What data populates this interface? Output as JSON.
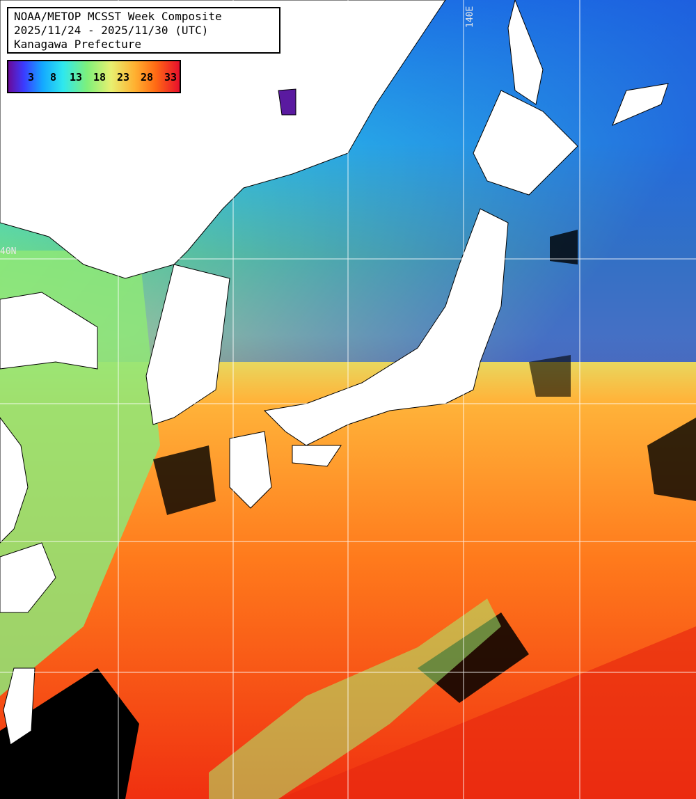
{
  "title": {
    "line1": "NOAA/METOP MCSST Week Composite",
    "line2": "2025/11/24 - 2025/11/30 (UTC)",
    "line3": "Kanagawa Prefecture"
  },
  "color_scale": {
    "ticks": [
      "3",
      "8",
      "13",
      "18",
      "23",
      "28",
      "33"
    ],
    "colors": [
      "#6a0a9a",
      "#3b3bff",
      "#14a8ff",
      "#2fe8ee",
      "#7ef07a",
      "#e8f070",
      "#ffb030",
      "#ff6a14",
      "#e80f2c"
    ]
  },
  "grid_labels": {
    "longitude": "140E",
    "latitude": "40N"
  },
  "colors": {
    "land": "#ffffff",
    "cloud": "#000000",
    "grid": "#ffffff"
  }
}
